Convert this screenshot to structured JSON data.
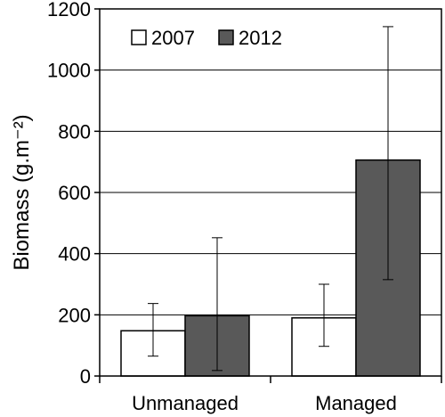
{
  "chart_data": {
    "type": "bar",
    "categories": [
      "Unmanaged",
      "Managed"
    ],
    "series": [
      {
        "name": "2007",
        "color": "#ffffff",
        "values": [
          148,
          190
        ],
        "err_low": [
          65,
          97
        ],
        "err_high": [
          237,
          300
        ]
      },
      {
        "name": "2012",
        "color": "#595959",
        "values": [
          197,
          706
        ],
        "err_low": [
          18,
          315
        ],
        "err_high": [
          452,
          1142
        ]
      }
    ],
    "xlabel": "",
    "ylabel": "Biomass (g.m⁻²)",
    "ylim": [
      0,
      1200
    ],
    "yticks": [
      0,
      200,
      400,
      600,
      800,
      1000,
      1200
    ],
    "grid": true,
    "legend_position": "top-left"
  }
}
